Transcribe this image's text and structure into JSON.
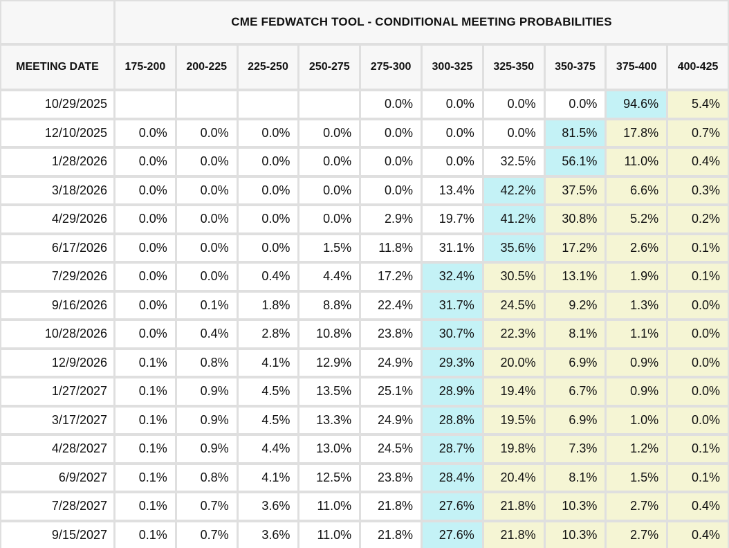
{
  "title": "CME FEDWATCH TOOL - CONDITIONAL MEETING PROBABILITIES",
  "columns": [
    "MEETING DATE",
    "175-200",
    "200-225",
    "225-250",
    "250-275",
    "275-300",
    "300-325",
    "325-350",
    "350-375",
    "375-400",
    "400-425"
  ],
  "colors": {
    "max_highlight": "#c4f2f6",
    "tail_highlight": "#f5f5d4",
    "header_bg": "#f7f7f7",
    "cell_bg": "#ffffff",
    "grid_line": "#dfdfdf",
    "text": "#111111"
  },
  "rows": [
    {
      "date": "10/29/2025",
      "values": [
        "",
        "",
        "",
        "",
        "0.0%",
        "0.0%",
        "0.0%",
        "0.0%",
        "94.6%",
        "5.4%"
      ],
      "max_index": 8
    },
    {
      "date": "12/10/2025",
      "values": [
        "0.0%",
        "0.0%",
        "0.0%",
        "0.0%",
        "0.0%",
        "0.0%",
        "0.0%",
        "81.5%",
        "17.8%",
        "0.7%"
      ],
      "max_index": 7
    },
    {
      "date": "1/28/2026",
      "values": [
        "0.0%",
        "0.0%",
        "0.0%",
        "0.0%",
        "0.0%",
        "0.0%",
        "32.5%",
        "56.1%",
        "11.0%",
        "0.4%"
      ],
      "max_index": 7
    },
    {
      "date": "3/18/2026",
      "values": [
        "0.0%",
        "0.0%",
        "0.0%",
        "0.0%",
        "0.0%",
        "13.4%",
        "42.2%",
        "37.5%",
        "6.6%",
        "0.3%"
      ],
      "max_index": 6
    },
    {
      "date": "4/29/2026",
      "values": [
        "0.0%",
        "0.0%",
        "0.0%",
        "0.0%",
        "2.9%",
        "19.7%",
        "41.2%",
        "30.8%",
        "5.2%",
        "0.2%"
      ],
      "max_index": 6
    },
    {
      "date": "6/17/2026",
      "values": [
        "0.0%",
        "0.0%",
        "0.0%",
        "1.5%",
        "11.8%",
        "31.1%",
        "35.6%",
        "17.2%",
        "2.6%",
        "0.1%"
      ],
      "max_index": 6
    },
    {
      "date": "7/29/2026",
      "values": [
        "0.0%",
        "0.0%",
        "0.4%",
        "4.4%",
        "17.2%",
        "32.4%",
        "30.5%",
        "13.1%",
        "1.9%",
        "0.1%"
      ],
      "max_index": 5
    },
    {
      "date": "9/16/2026",
      "values": [
        "0.0%",
        "0.1%",
        "1.8%",
        "8.8%",
        "22.4%",
        "31.7%",
        "24.5%",
        "9.2%",
        "1.3%",
        "0.0%"
      ],
      "max_index": 5
    },
    {
      "date": "10/28/2026",
      "values": [
        "0.0%",
        "0.4%",
        "2.8%",
        "10.8%",
        "23.8%",
        "30.7%",
        "22.3%",
        "8.1%",
        "1.1%",
        "0.0%"
      ],
      "max_index": 5
    },
    {
      "date": "12/9/2026",
      "values": [
        "0.1%",
        "0.8%",
        "4.1%",
        "12.9%",
        "24.9%",
        "29.3%",
        "20.0%",
        "6.9%",
        "0.9%",
        "0.0%"
      ],
      "max_index": 5
    },
    {
      "date": "1/27/2027",
      "values": [
        "0.1%",
        "0.9%",
        "4.5%",
        "13.5%",
        "25.1%",
        "28.9%",
        "19.4%",
        "6.7%",
        "0.9%",
        "0.0%"
      ],
      "max_index": 5
    },
    {
      "date": "3/17/2027",
      "values": [
        "0.1%",
        "0.9%",
        "4.5%",
        "13.3%",
        "24.9%",
        "28.8%",
        "19.5%",
        "6.9%",
        "1.0%",
        "0.0%"
      ],
      "max_index": 5
    },
    {
      "date": "4/28/2027",
      "values": [
        "0.1%",
        "0.9%",
        "4.4%",
        "13.0%",
        "24.5%",
        "28.7%",
        "19.8%",
        "7.3%",
        "1.2%",
        "0.1%"
      ],
      "max_index": 5
    },
    {
      "date": "6/9/2027",
      "values": [
        "0.1%",
        "0.8%",
        "4.1%",
        "12.5%",
        "23.8%",
        "28.4%",
        "20.4%",
        "8.1%",
        "1.5%",
        "0.1%"
      ],
      "max_index": 5
    },
    {
      "date": "7/28/2027",
      "values": [
        "0.1%",
        "0.7%",
        "3.6%",
        "11.0%",
        "21.8%",
        "27.6%",
        "21.8%",
        "10.3%",
        "2.7%",
        "0.4%"
      ],
      "max_index": 5
    },
    {
      "date": "9/15/2027",
      "values": [
        "0.1%",
        "0.7%",
        "3.6%",
        "11.0%",
        "21.8%",
        "27.6%",
        "21.8%",
        "10.3%",
        "2.7%",
        "0.4%"
      ],
      "max_index": 5
    }
  ]
}
